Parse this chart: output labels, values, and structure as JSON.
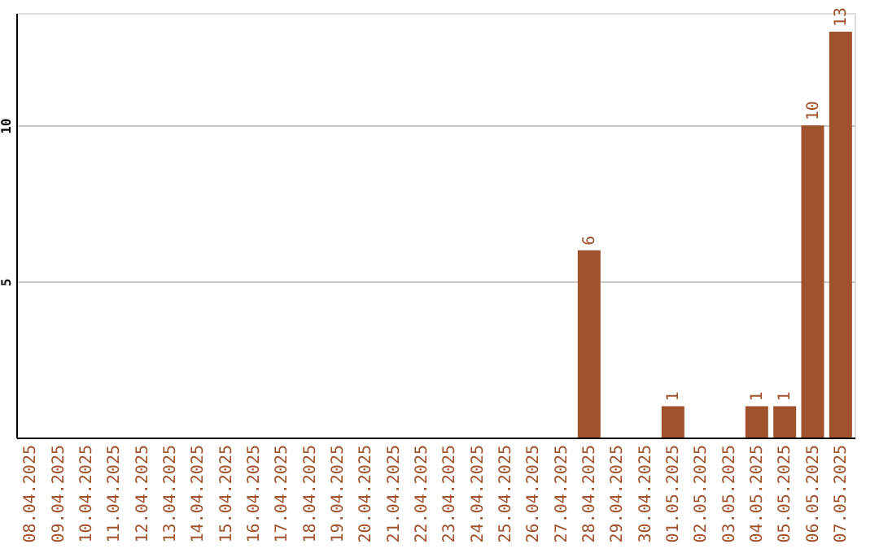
{
  "chart_data": {
    "type": "bar",
    "categories": [
      "08.04.2025",
      "09.04.2025",
      "10.04.2025",
      "11.04.2025",
      "12.04.2025",
      "13.04.2025",
      "14.04.2025",
      "15.04.2025",
      "16.04.2025",
      "17.04.2025",
      "18.04.2025",
      "19.04.2025",
      "20.04.2025",
      "21.04.2025",
      "22.04.2025",
      "23.04.2025",
      "24.04.2025",
      "25.04.2025",
      "26.04.2025",
      "27.04.2025",
      "28.04.2025",
      "29.04.2025",
      "30.04.2025",
      "01.05.2025",
      "02.05.2025",
      "03.05.2025",
      "04.05.2025",
      "05.05.2025",
      "06.05.2025",
      "07.05.2025"
    ],
    "values": [
      0,
      0,
      0,
      0,
      0,
      0,
      0,
      0,
      0,
      0,
      0,
      0,
      0,
      0,
      0,
      0,
      0,
      0,
      0,
      0,
      6,
      0,
      0,
      1,
      0,
      0,
      1,
      1,
      10,
      13
    ],
    "value_labels": [
      null,
      null,
      null,
      null,
      null,
      null,
      null,
      null,
      null,
      null,
      null,
      null,
      null,
      null,
      null,
      null,
      null,
      null,
      null,
      null,
      "6",
      null,
      null,
      "1",
      null,
      null,
      "1",
      "1",
      "10",
      "13"
    ],
    "color": "#a0522d",
    "ylim": [
      0,
      13.6
    ],
    "yticks": [
      5,
      10
    ],
    "grid": "y"
  }
}
